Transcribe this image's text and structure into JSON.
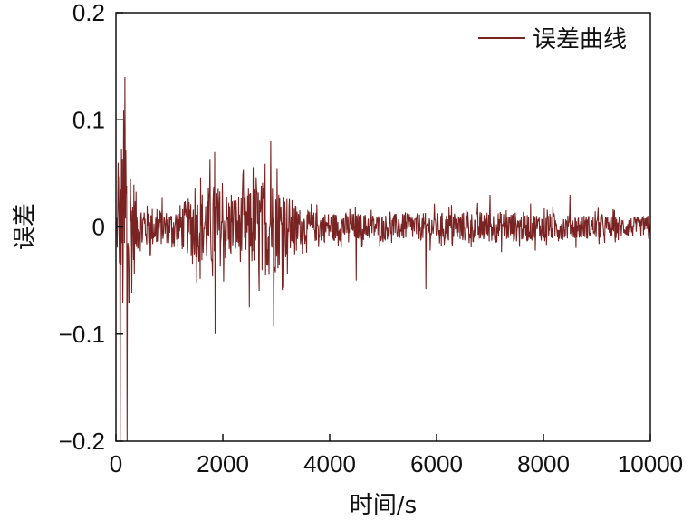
{
  "chart_data": {
    "type": "line",
    "xlabel": "时间/s",
    "ylabel": "误差",
    "xlim": [
      0,
      10000
    ],
    "ylim": [
      -0.2,
      0.2
    ],
    "xticks": [
      0,
      2000,
      4000,
      6000,
      8000,
      10000
    ],
    "xtick_labels": [
      "0",
      "2000",
      "4000",
      "6000",
      "8000",
      "10000"
    ],
    "yticks": [
      -0.2,
      -0.1,
      0,
      0.1,
      0.2
    ],
    "ytick_labels": [
      "−0.2",
      "−0.1",
      "0",
      "0.1",
      "0.2"
    ],
    "grid": false,
    "legend": "top-right",
    "series": [
      {
        "name": "误差曲线",
        "color": "#7a2323",
        "envelope": [
          {
            "x": 0,
            "amp": 0.02
          },
          {
            "x": 150,
            "amp": 0.2
          },
          {
            "x": 400,
            "amp": 0.04
          },
          {
            "x": 1000,
            "amp": 0.025
          },
          {
            "x": 1800,
            "amp": 0.07
          },
          {
            "x": 2200,
            "amp": 0.05
          },
          {
            "x": 2900,
            "amp": 0.08
          },
          {
            "x": 3500,
            "amp": 0.025
          },
          {
            "x": 5000,
            "amp": 0.02
          },
          {
            "x": 7000,
            "amp": 0.025
          },
          {
            "x": 10000,
            "amp": 0.015
          }
        ],
        "peaks": [
          {
            "x": 40,
            "y": 0.06
          },
          {
            "x": 80,
            "y": -0.2
          },
          {
            "x": 170,
            "y": 0.14
          },
          {
            "x": 210,
            "y": -0.2
          },
          {
            "x": 250,
            "y": -0.07
          },
          {
            "x": 1850,
            "y": 0.07
          },
          {
            "x": 1860,
            "y": -0.1
          },
          {
            "x": 2900,
            "y": 0.08
          },
          {
            "x": 2950,
            "y": -0.093
          },
          {
            "x": 2500,
            "y": -0.075
          },
          {
            "x": 4500,
            "y": -0.05
          },
          {
            "x": 5800,
            "y": -0.058
          },
          {
            "x": 7000,
            "y": 0.03
          },
          {
            "x": 8500,
            "y": 0.03
          }
        ]
      }
    ]
  }
}
